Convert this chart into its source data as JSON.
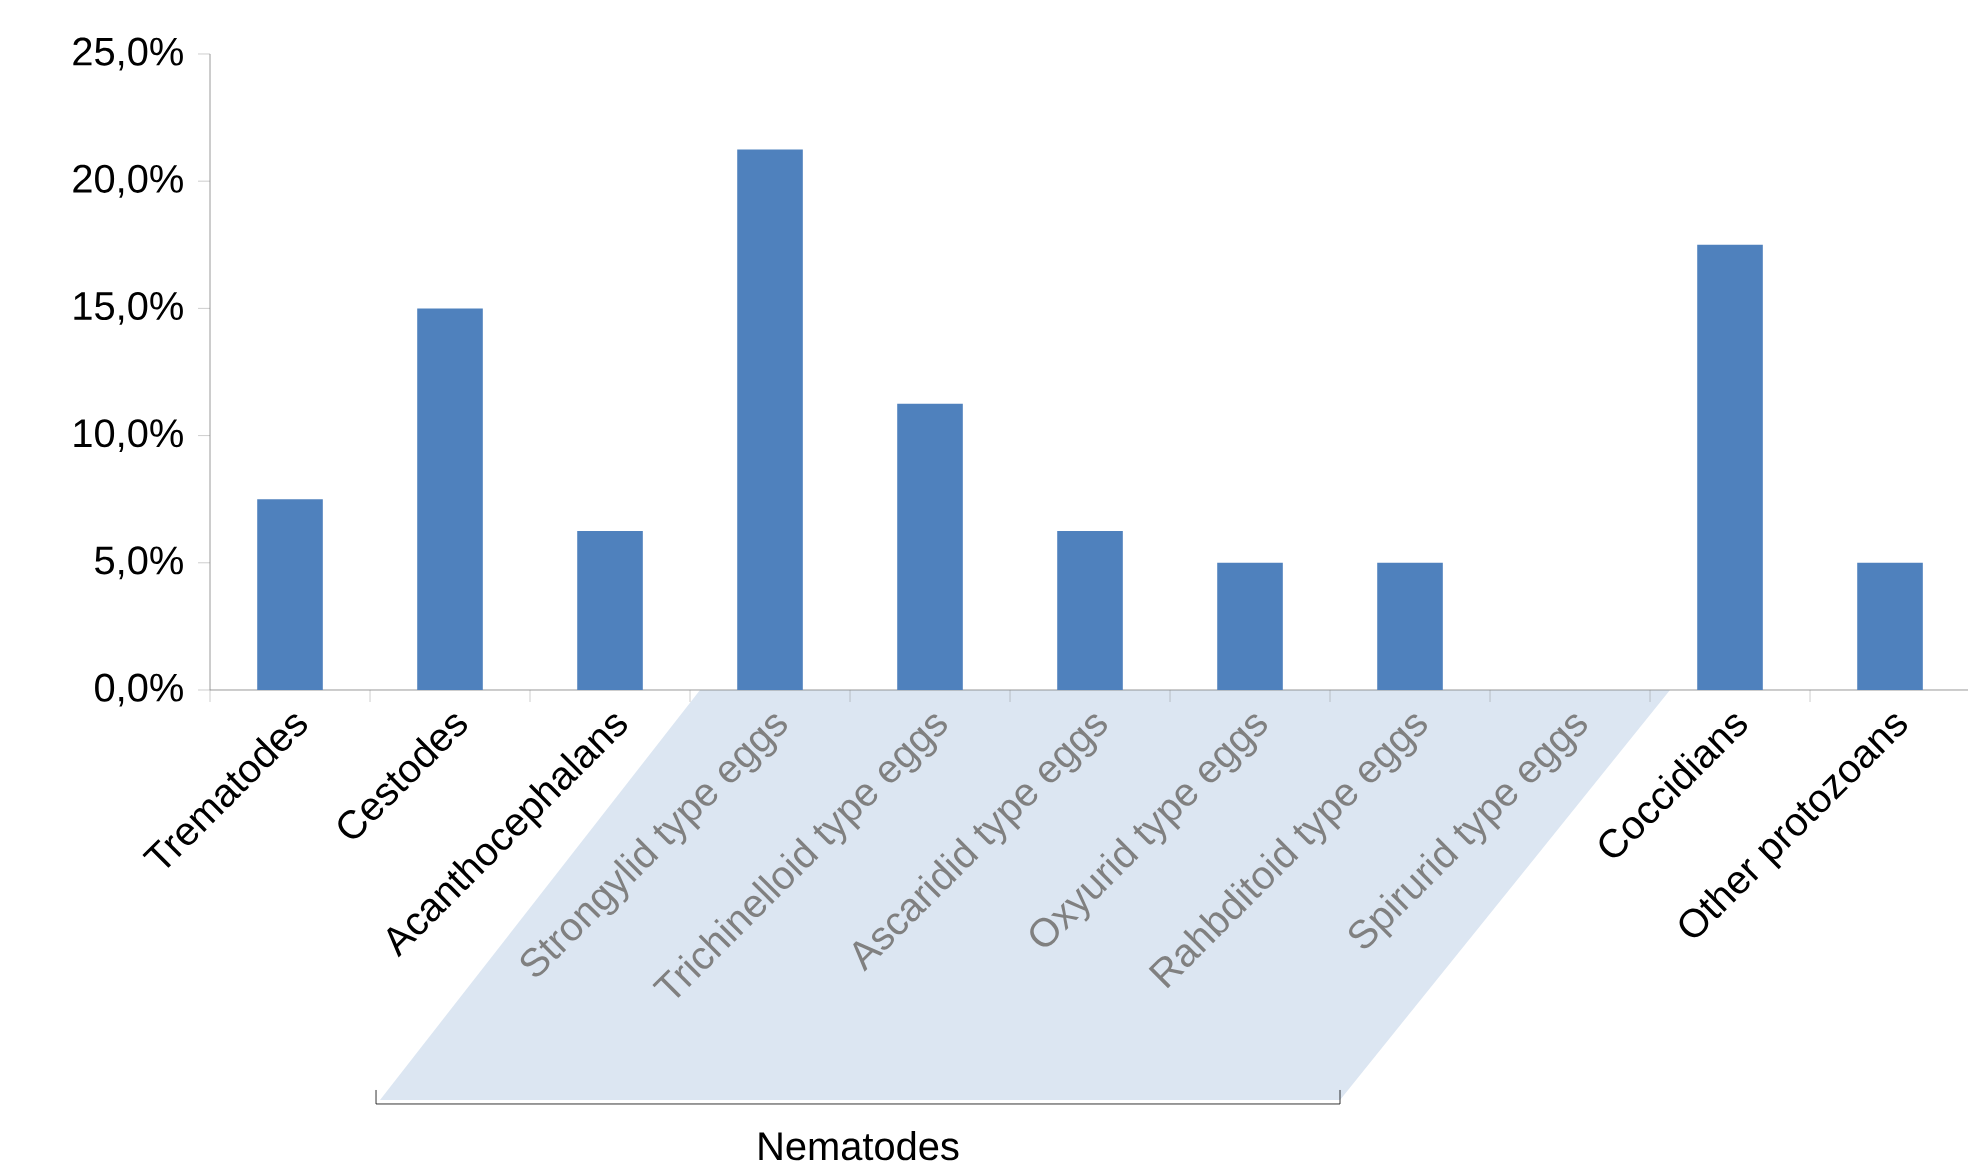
{
  "chart_data": {
    "type": "bar",
    "categories": [
      "Trematodes",
      "Cestodes",
      "Acanthocephalans",
      "Strongylid type eggs",
      "Trichinelloid type eggs",
      "Ascaridid type eggs",
      "Oxyurid type eggs",
      "Rahbditoid type eggs",
      "Spirurid type eggs",
      "Coccidians",
      "Other protozoans"
    ],
    "values": [
      7.5,
      15.0,
      6.25,
      21.25,
      11.25,
      6.25,
      5.0,
      5.0,
      0,
      17.5,
      5.0
    ],
    "color": "#4f81bd",
    "ylim": [
      0,
      25
    ],
    "yticks": [
      {
        "value": 0,
        "label": "0,0%"
      },
      {
        "value": 5,
        "label": "5,0%"
      },
      {
        "value": 10,
        "label": "10,0%"
      },
      {
        "value": 15,
        "label": "15,0%"
      },
      {
        "value": 20,
        "label": "20,0%"
      },
      {
        "value": 25,
        "label": "25,0%"
      }
    ],
    "grid": false,
    "annotations": [
      "Nematodes"
    ]
  }
}
